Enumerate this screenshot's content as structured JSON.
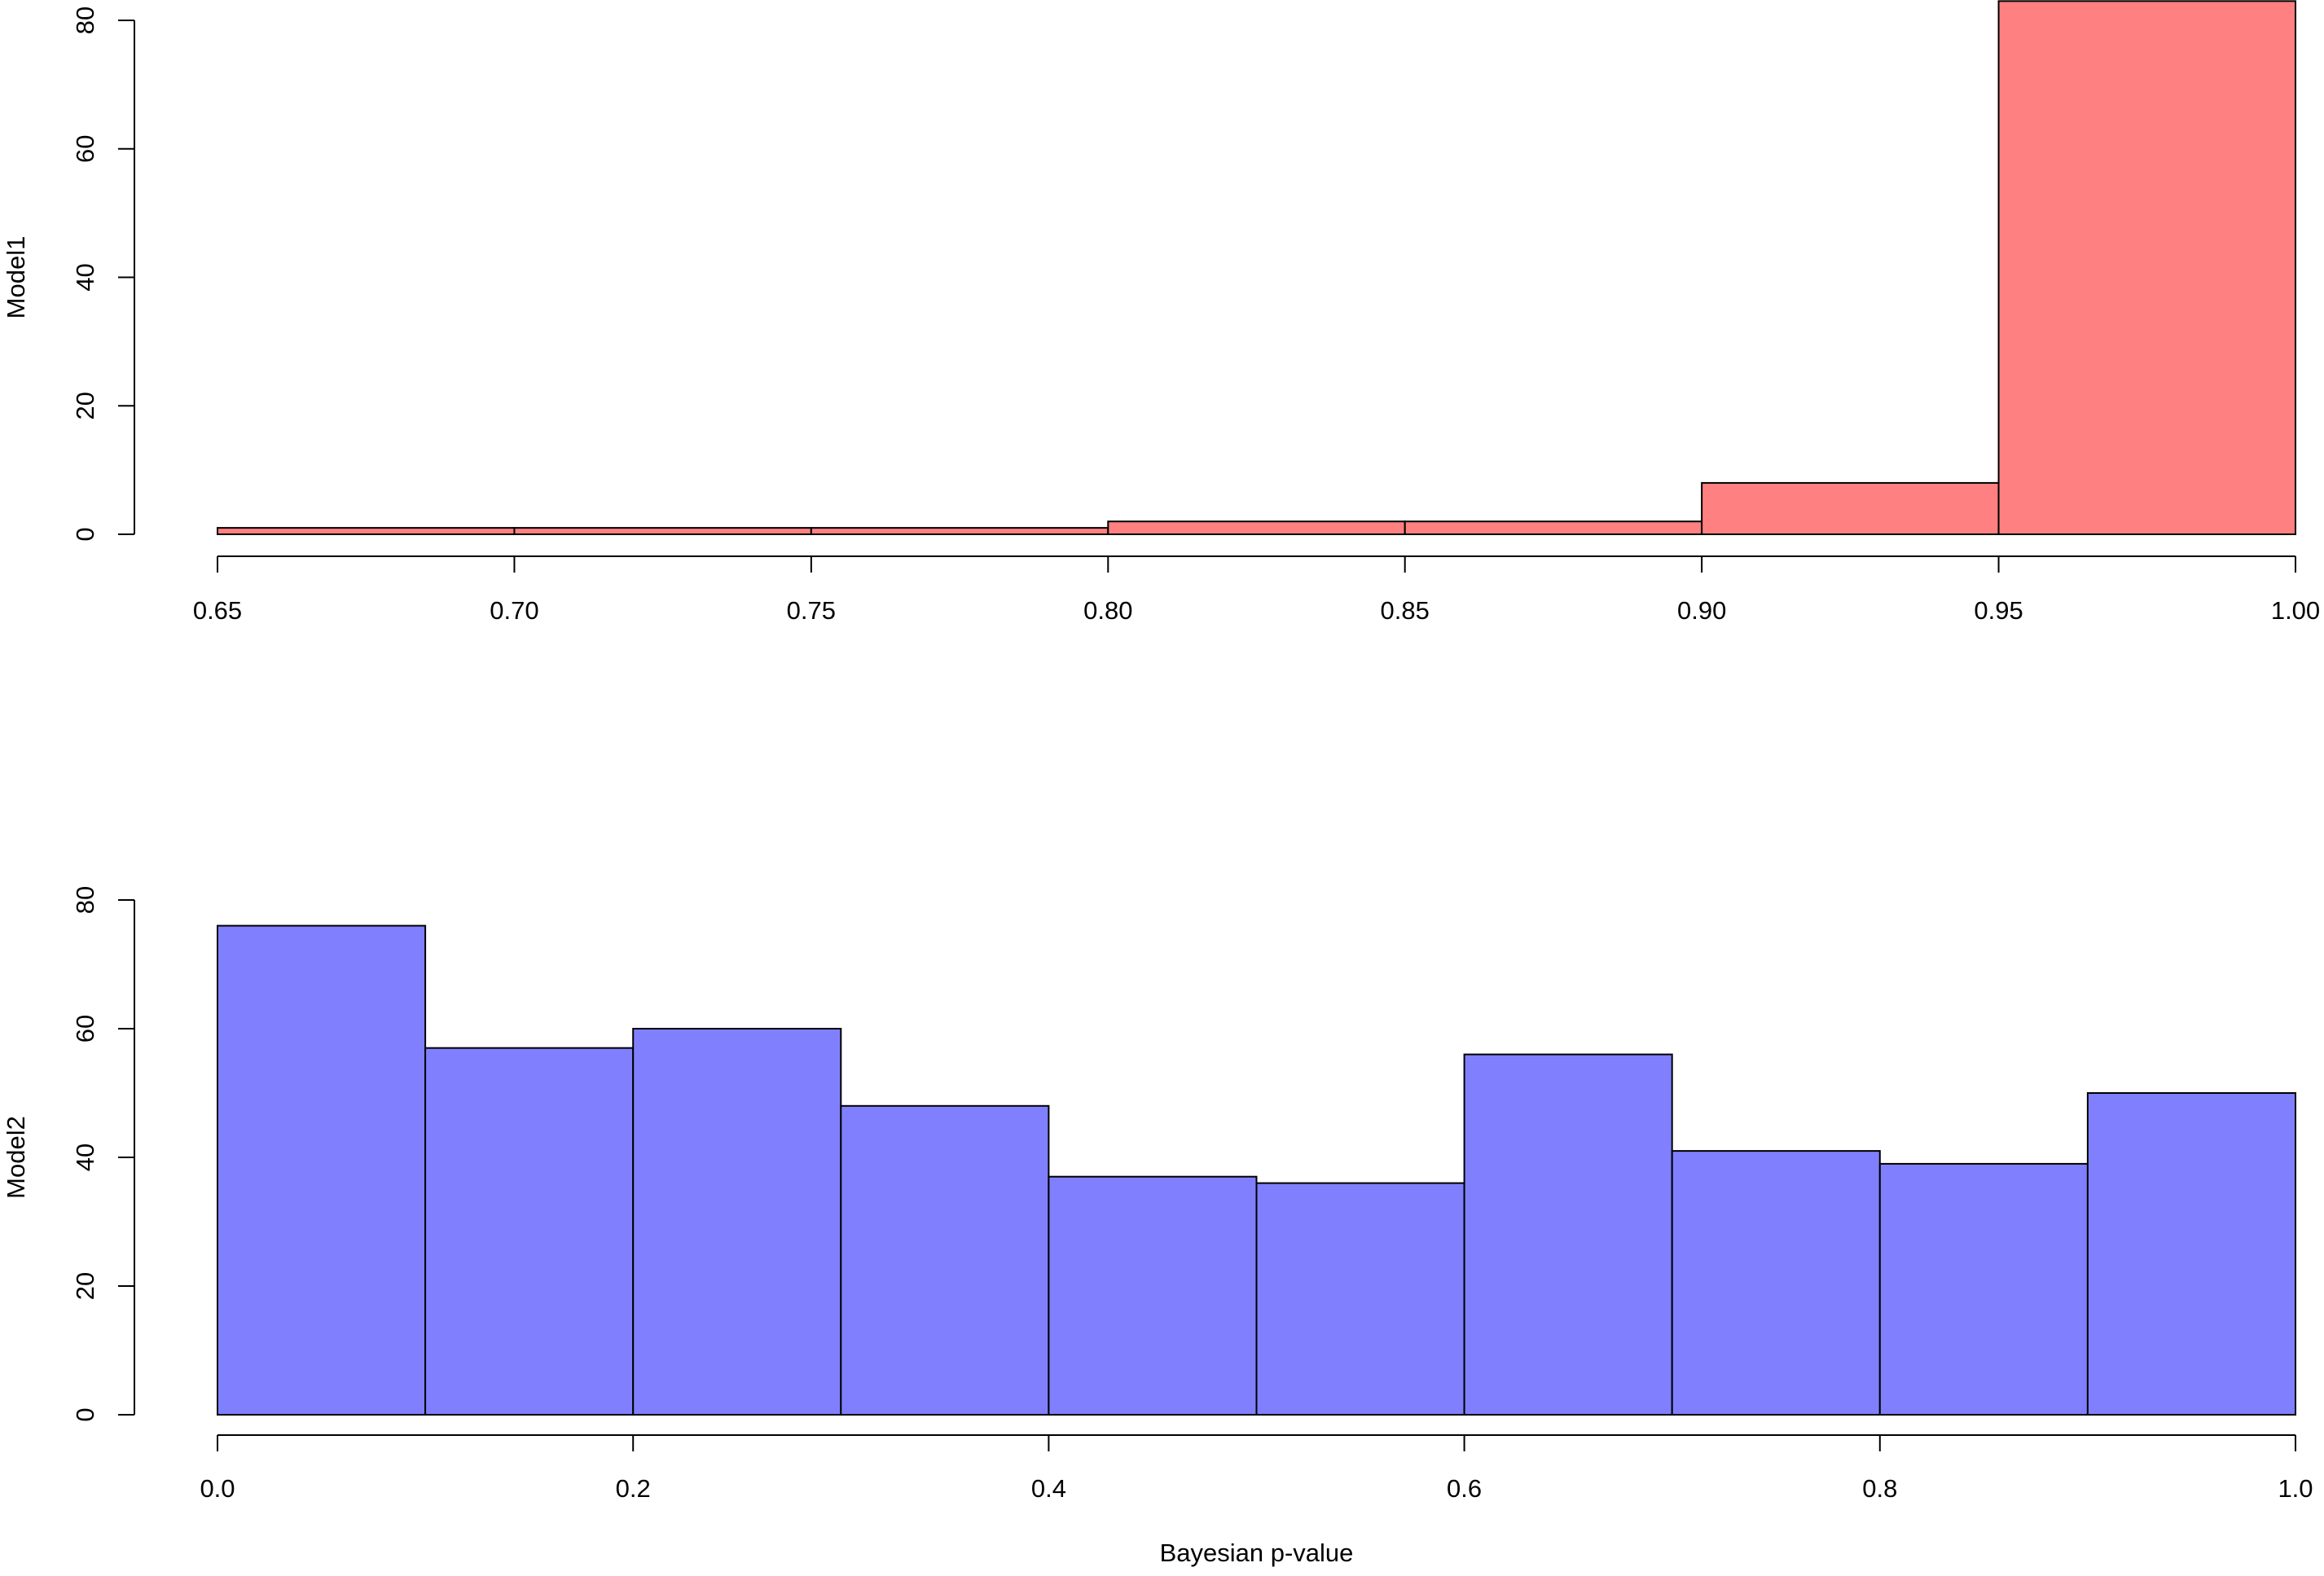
{
  "chart_data": [
    {
      "type": "bar",
      "histogram": true,
      "title": "",
      "xlabel": "",
      "ylabel": "Model1",
      "bin_edges": [
        0.65,
        0.7,
        0.75,
        0.8,
        0.85,
        0.9,
        0.95,
        1.0
      ],
      "values": [
        1,
        1,
        1,
        2,
        2,
        8,
        83
      ],
      "xlim": [
        0.65,
        1.0
      ],
      "ylim": [
        0,
        80
      ],
      "x_ticks": [
        "0.65",
        "0.70",
        "0.75",
        "0.80",
        "0.85",
        "0.90",
        "0.95",
        "1.00"
      ],
      "y_ticks": [
        "0",
        "20",
        "40",
        "60",
        "80"
      ],
      "fill_color": "#ff8080",
      "edge_color": "#000000",
      "grid": false
    },
    {
      "type": "bar",
      "histogram": true,
      "title": "",
      "xlabel": "Bayesian p-value",
      "ylabel": "Model2",
      "bin_edges": [
        0.0,
        0.1,
        0.2,
        0.3,
        0.4,
        0.5,
        0.6,
        0.7,
        0.8,
        0.9,
        1.0
      ],
      "values": [
        76,
        57,
        60,
        48,
        37,
        36,
        56,
        41,
        39,
        50
      ],
      "xlim": [
        0.0,
        1.0
      ],
      "ylim": [
        0,
        80
      ],
      "x_ticks": [
        "0.0",
        "0.2",
        "0.4",
        "0.6",
        "0.8",
        "1.0"
      ],
      "y_ticks": [
        "0",
        "20",
        "40",
        "60",
        "80"
      ],
      "fill_color": "#8080ff",
      "edge_color": "#000000",
      "grid": false
    }
  ]
}
